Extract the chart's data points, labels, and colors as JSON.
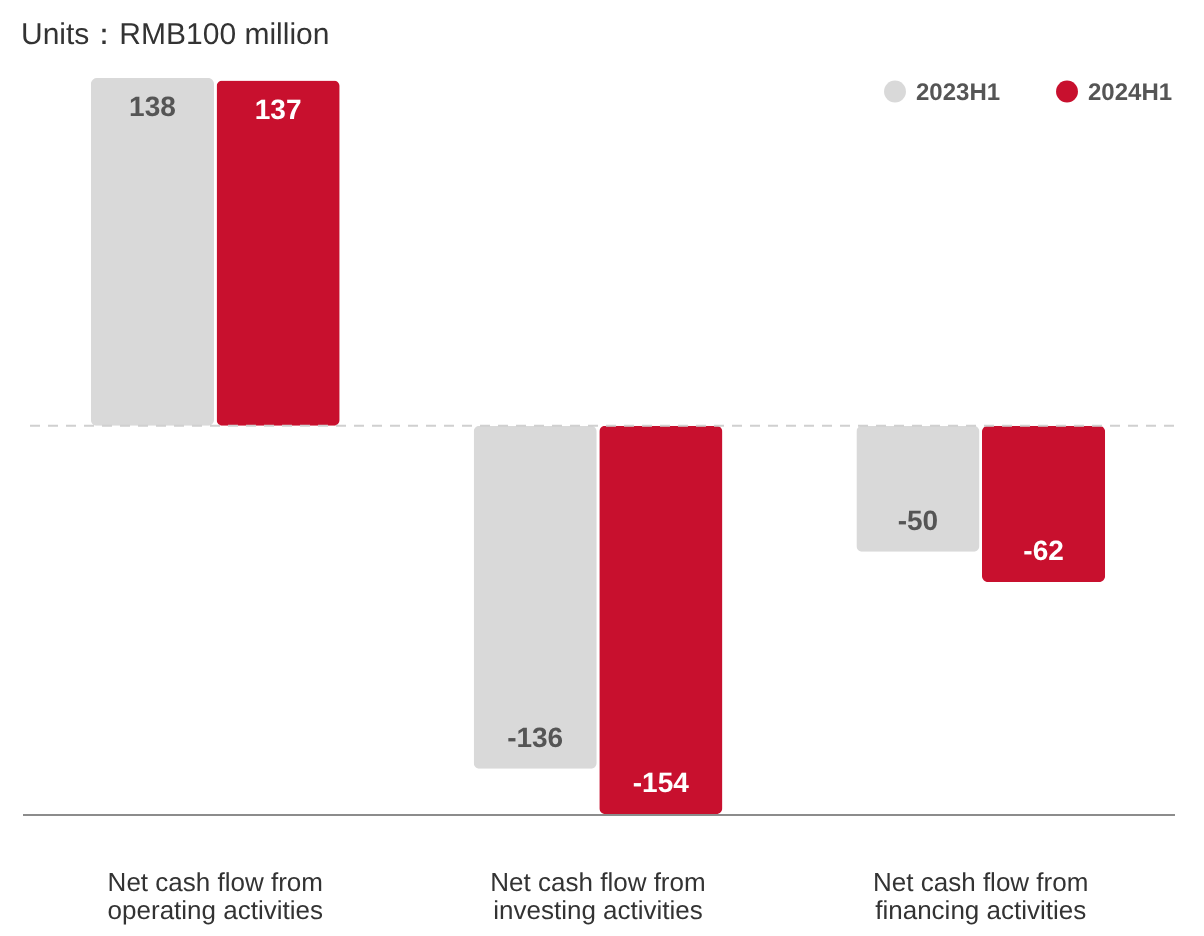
{
  "chart_data": {
    "type": "bar",
    "title": "Units：RMB100 million",
    "categories": [
      "Net cash flow from operating activities",
      "Net cash flow from investing activities",
      "Net cash flow from financing activities"
    ],
    "series": [
      {
        "name": "2023H1",
        "color": "#d9d9d9",
        "values": [
          138,
          -136,
          -50
        ]
      },
      {
        "name": "2024H1",
        "color": "#c8102e",
        "values": [
          137,
          -154,
          -62
        ]
      }
    ],
    "data_labels": true,
    "legend": "top right",
    "grid": false,
    "ref_lines": [
      {
        "axis": "y",
        "value": 0,
        "color": "#d0d0d0",
        "line_style": "dashed"
      }
    ]
  }
}
